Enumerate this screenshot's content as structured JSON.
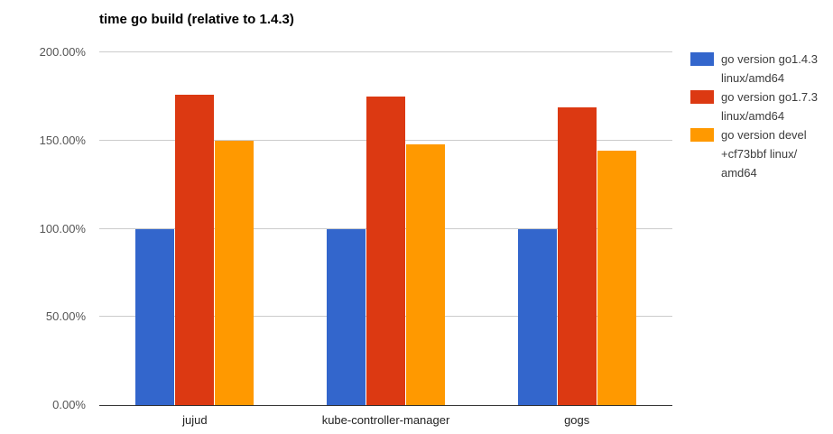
{
  "chart_data": {
    "type": "bar",
    "title": "time go build (relative to 1.4.3)",
    "xlabel": "",
    "ylabel": "",
    "categories": [
      "jujud",
      "kube-controller-manager",
      "gogs"
    ],
    "series": [
      {
        "name": "go version go1.4.3 linux/amd64",
        "legend_lines": [
          "go version go1.4.3",
          "linux/amd64"
        ],
        "color": "#3366CC",
        "values": [
          100,
          100,
          100
        ]
      },
      {
        "name": "go version go1.7.3 linux/amd64",
        "legend_lines": [
          "go version go1.7.3",
          "linux/amd64"
        ],
        "color": "#DC3912",
        "values": [
          176,
          175,
          169
        ]
      },
      {
        "name": "go version devel +cf73bbf linux/amd64",
        "legend_lines": [
          "go version devel",
          "+cf73bbf linux/",
          "amd64"
        ],
        "color": "#FF9900",
        "values": [
          150,
          148,
          144.5
        ]
      }
    ],
    "value_unit": "%",
    "ylim": [
      0,
      200
    ],
    "yticks": [
      {
        "value": 0,
        "label": "0.00%"
      },
      {
        "value": 50,
        "label": "50.00%"
      },
      {
        "value": 100,
        "label": "100.00%"
      },
      {
        "value": 150,
        "label": "150.00%"
      },
      {
        "value": 200,
        "label": "200.00%"
      }
    ],
    "grid": true,
    "legend_position": "right"
  },
  "colors": {
    "background": "#ffffff",
    "gridline": "#cccccc",
    "axis_line": "#333333",
    "tick_text": "#555555",
    "category_text": "#222222",
    "title_text": "#000000",
    "legend_text": "#3c3c3c"
  }
}
